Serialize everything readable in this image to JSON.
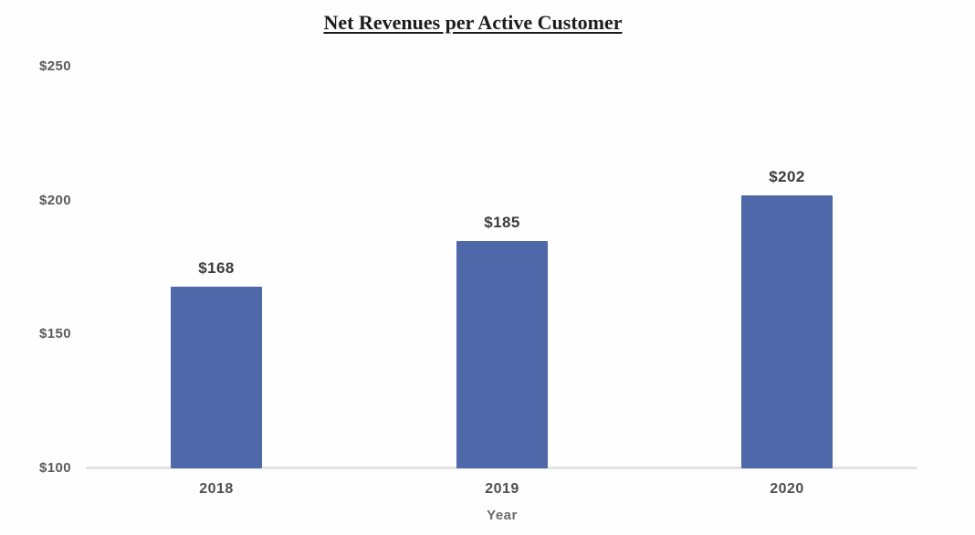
{
  "chart_data": {
    "type": "bar",
    "title": "Net Revenues per Active Customer",
    "xlabel": "Year",
    "ylabel": "",
    "categories": [
      "2018",
      "2019",
      "2020"
    ],
    "values": [
      168,
      185,
      202
    ],
    "data_labels": [
      "$168",
      "$185",
      "$202"
    ],
    "yticks": [
      100,
      150,
      200,
      250
    ],
    "ytick_labels": [
      "$100",
      "$150",
      "$200",
      "$250"
    ],
    "ylim": [
      100,
      250
    ],
    "grid": false,
    "legend_position": "none",
    "bar_color": "#4e68aa",
    "data_label_color": "#3b3b3b",
    "ytick_color": "#5a5a5a",
    "xtick_color": "#4f4f4f",
    "xlabel_color": "#6b6b6b",
    "axis_line_color": "#e2e2e2",
    "title_color": "#1d1d1d",
    "background_color": "#fefefe"
  }
}
